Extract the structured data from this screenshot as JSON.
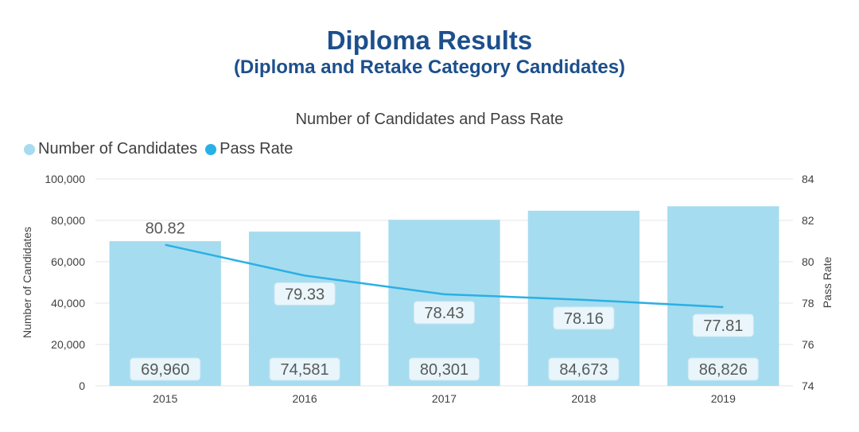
{
  "title": "Diploma Results",
  "subtitle": "(Diploma and Retake Category Candidates)",
  "chart_data": {
    "type": "bar",
    "title": "Number of Candidates and Pass Rate",
    "categories": [
      "2015",
      "2016",
      "2017",
      "2018",
      "2019"
    ],
    "series": [
      {
        "name": "Number of Candidates",
        "type": "bar",
        "axis": "left",
        "color": "#a6dcef",
        "values": [
          69960,
          74581,
          80301,
          84673,
          86826
        ],
        "labels": [
          "69,960",
          "74,581",
          "80,301",
          "84,673",
          "86,826"
        ]
      },
      {
        "name": "Pass Rate",
        "type": "line",
        "axis": "right",
        "color": "#2ab0e6",
        "values": [
          80.82,
          79.33,
          78.43,
          78.16,
          77.81
        ],
        "labels": [
          "80.82",
          "79.33",
          "78.43",
          "78.16",
          "77.81"
        ]
      }
    ],
    "ylabel": "Number of Candidates",
    "ylabel_right": "Pass Rate",
    "ylim": [
      0,
      100000
    ],
    "ylim_right": [
      74,
      84
    ],
    "yticks": [
      "0",
      "20,000",
      "40,000",
      "60,000",
      "80,000",
      "100,000"
    ],
    "yticks_right": [
      "74",
      "76",
      "78",
      "80",
      "82",
      "84"
    ],
    "legend": "top-left",
    "grid": true
  }
}
